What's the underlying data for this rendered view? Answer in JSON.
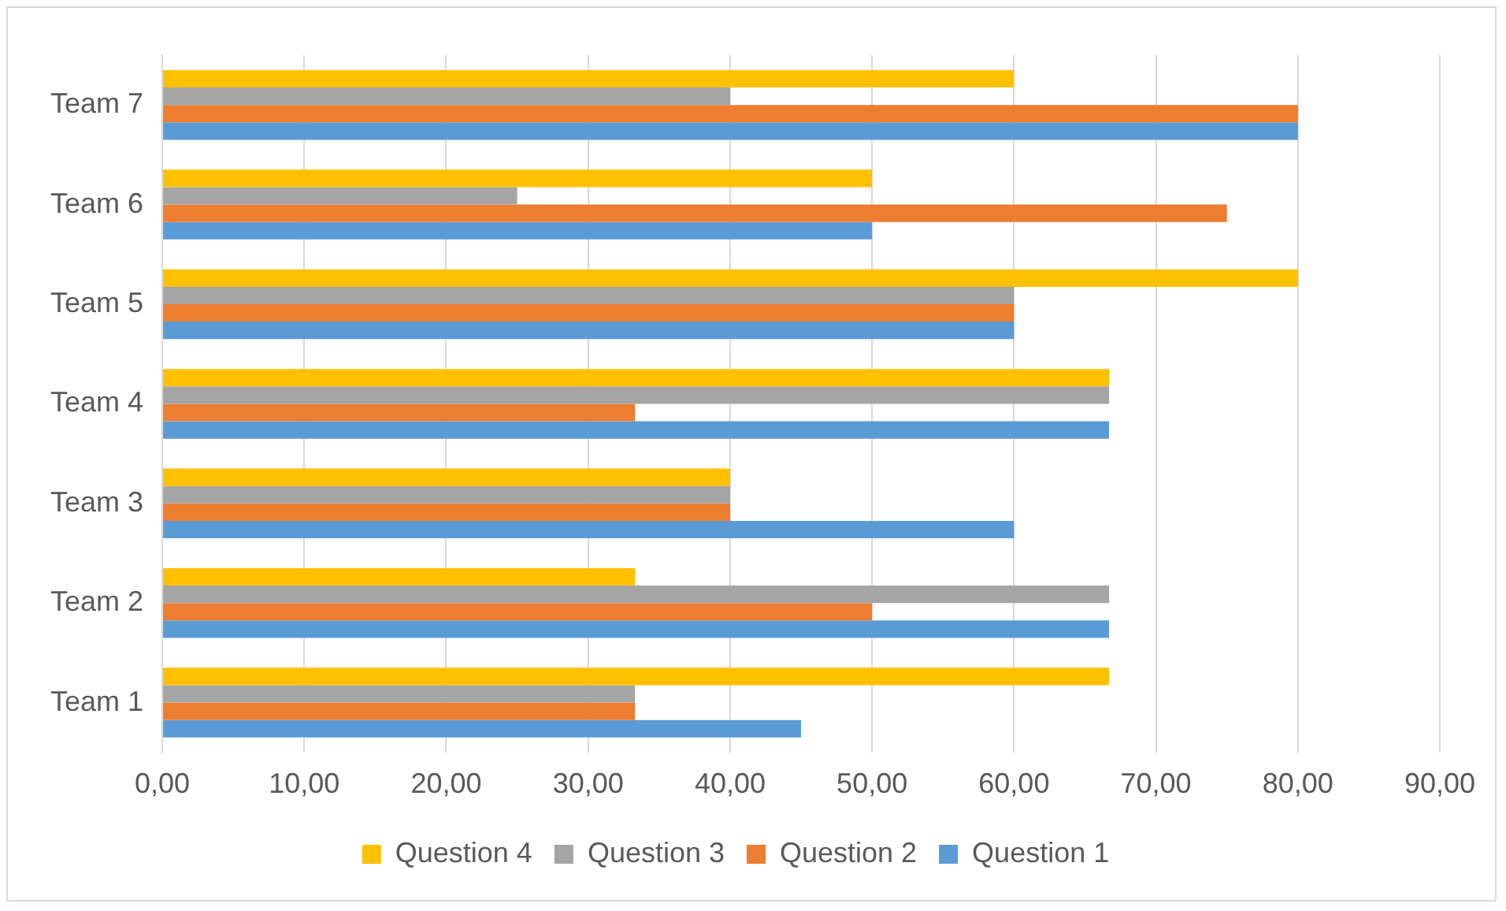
{
  "chart_data": {
    "type": "bar",
    "orientation": "horizontal",
    "categories": [
      "Team 7",
      "Team 6",
      "Team 5",
      "Team 4",
      "Team 3",
      "Team 2",
      "Team 1"
    ],
    "series": [
      {
        "name": "Question 4",
        "color": "#ffc000",
        "values": [
          60,
          50,
          80,
          66.7,
          40,
          33.3,
          66.7
        ]
      },
      {
        "name": "Question 3",
        "color": "#a5a5a5",
        "values": [
          40,
          25,
          60,
          66.7,
          40,
          66.7,
          33.3
        ]
      },
      {
        "name": "Question 2",
        "color": "#ed7d31",
        "values": [
          80,
          75,
          60,
          33.3,
          40,
          50,
          33.3
        ]
      },
      {
        "name": "Question 1",
        "color": "#5b9bd5",
        "values": [
          80,
          50,
          60,
          66.7,
          60,
          66.7,
          45
        ]
      }
    ],
    "xlim": [
      0,
      90
    ],
    "xticks": [
      {
        "value": 0,
        "label": "0,00"
      },
      {
        "value": 10,
        "label": "10,00"
      },
      {
        "value": 20,
        "label": "20,00"
      },
      {
        "value": 30,
        "label": "30,00"
      },
      {
        "value": 40,
        "label": "40,00"
      },
      {
        "value": 50,
        "label": "50,00"
      },
      {
        "value": 60,
        "label": "60,00"
      },
      {
        "value": 70,
        "label": "70,00"
      },
      {
        "value": 80,
        "label": "80,00"
      },
      {
        "value": 90,
        "label": "90,00"
      }
    ],
    "grid": "x",
    "legend": "bottom"
  }
}
